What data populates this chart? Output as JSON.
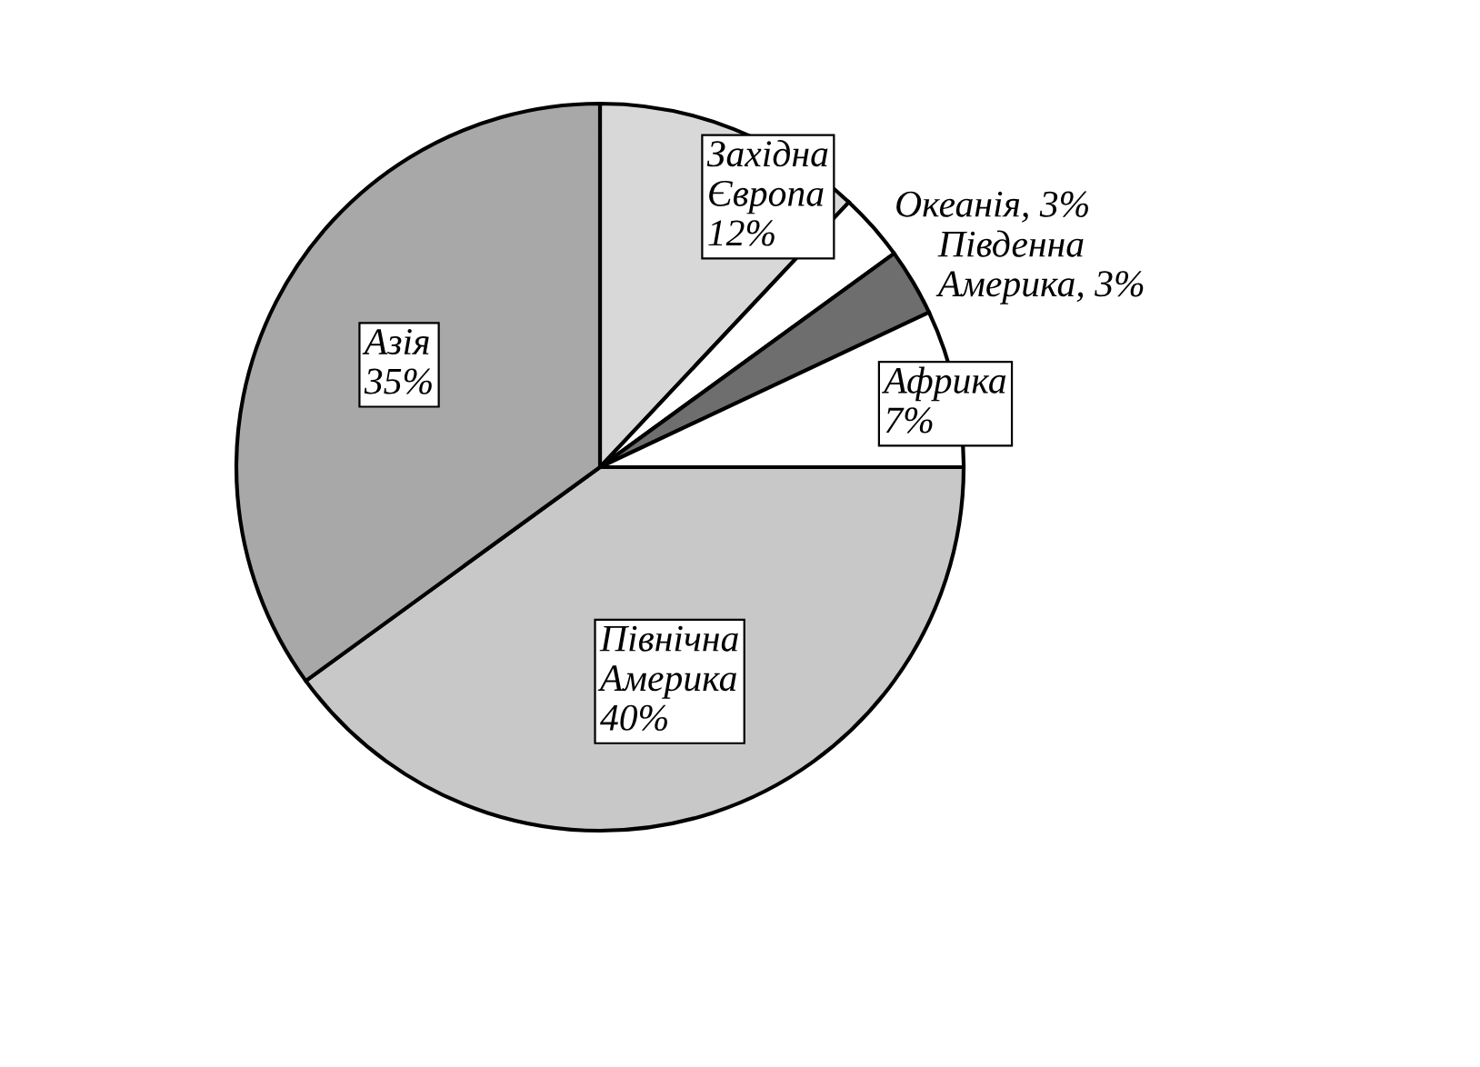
{
  "chart_data": {
    "type": "pie",
    "categories": [
      "Західна\nЄвропа",
      "Океанія",
      "Південна\nАмерика",
      "Африка",
      "Північна\nАмерика",
      "Азія"
    ],
    "values": [
      12,
      3,
      3,
      7,
      40,
      35
    ],
    "value_labels": [
      "12%",
      "3%",
      "3%",
      "7%",
      "40%",
      "35%"
    ],
    "colors": [
      "#d8d8d8",
      "#ffffff",
      "#6e6e6e",
      "#ffffff",
      "#c8c8c8",
      "#a8a8a8"
    ]
  }
}
